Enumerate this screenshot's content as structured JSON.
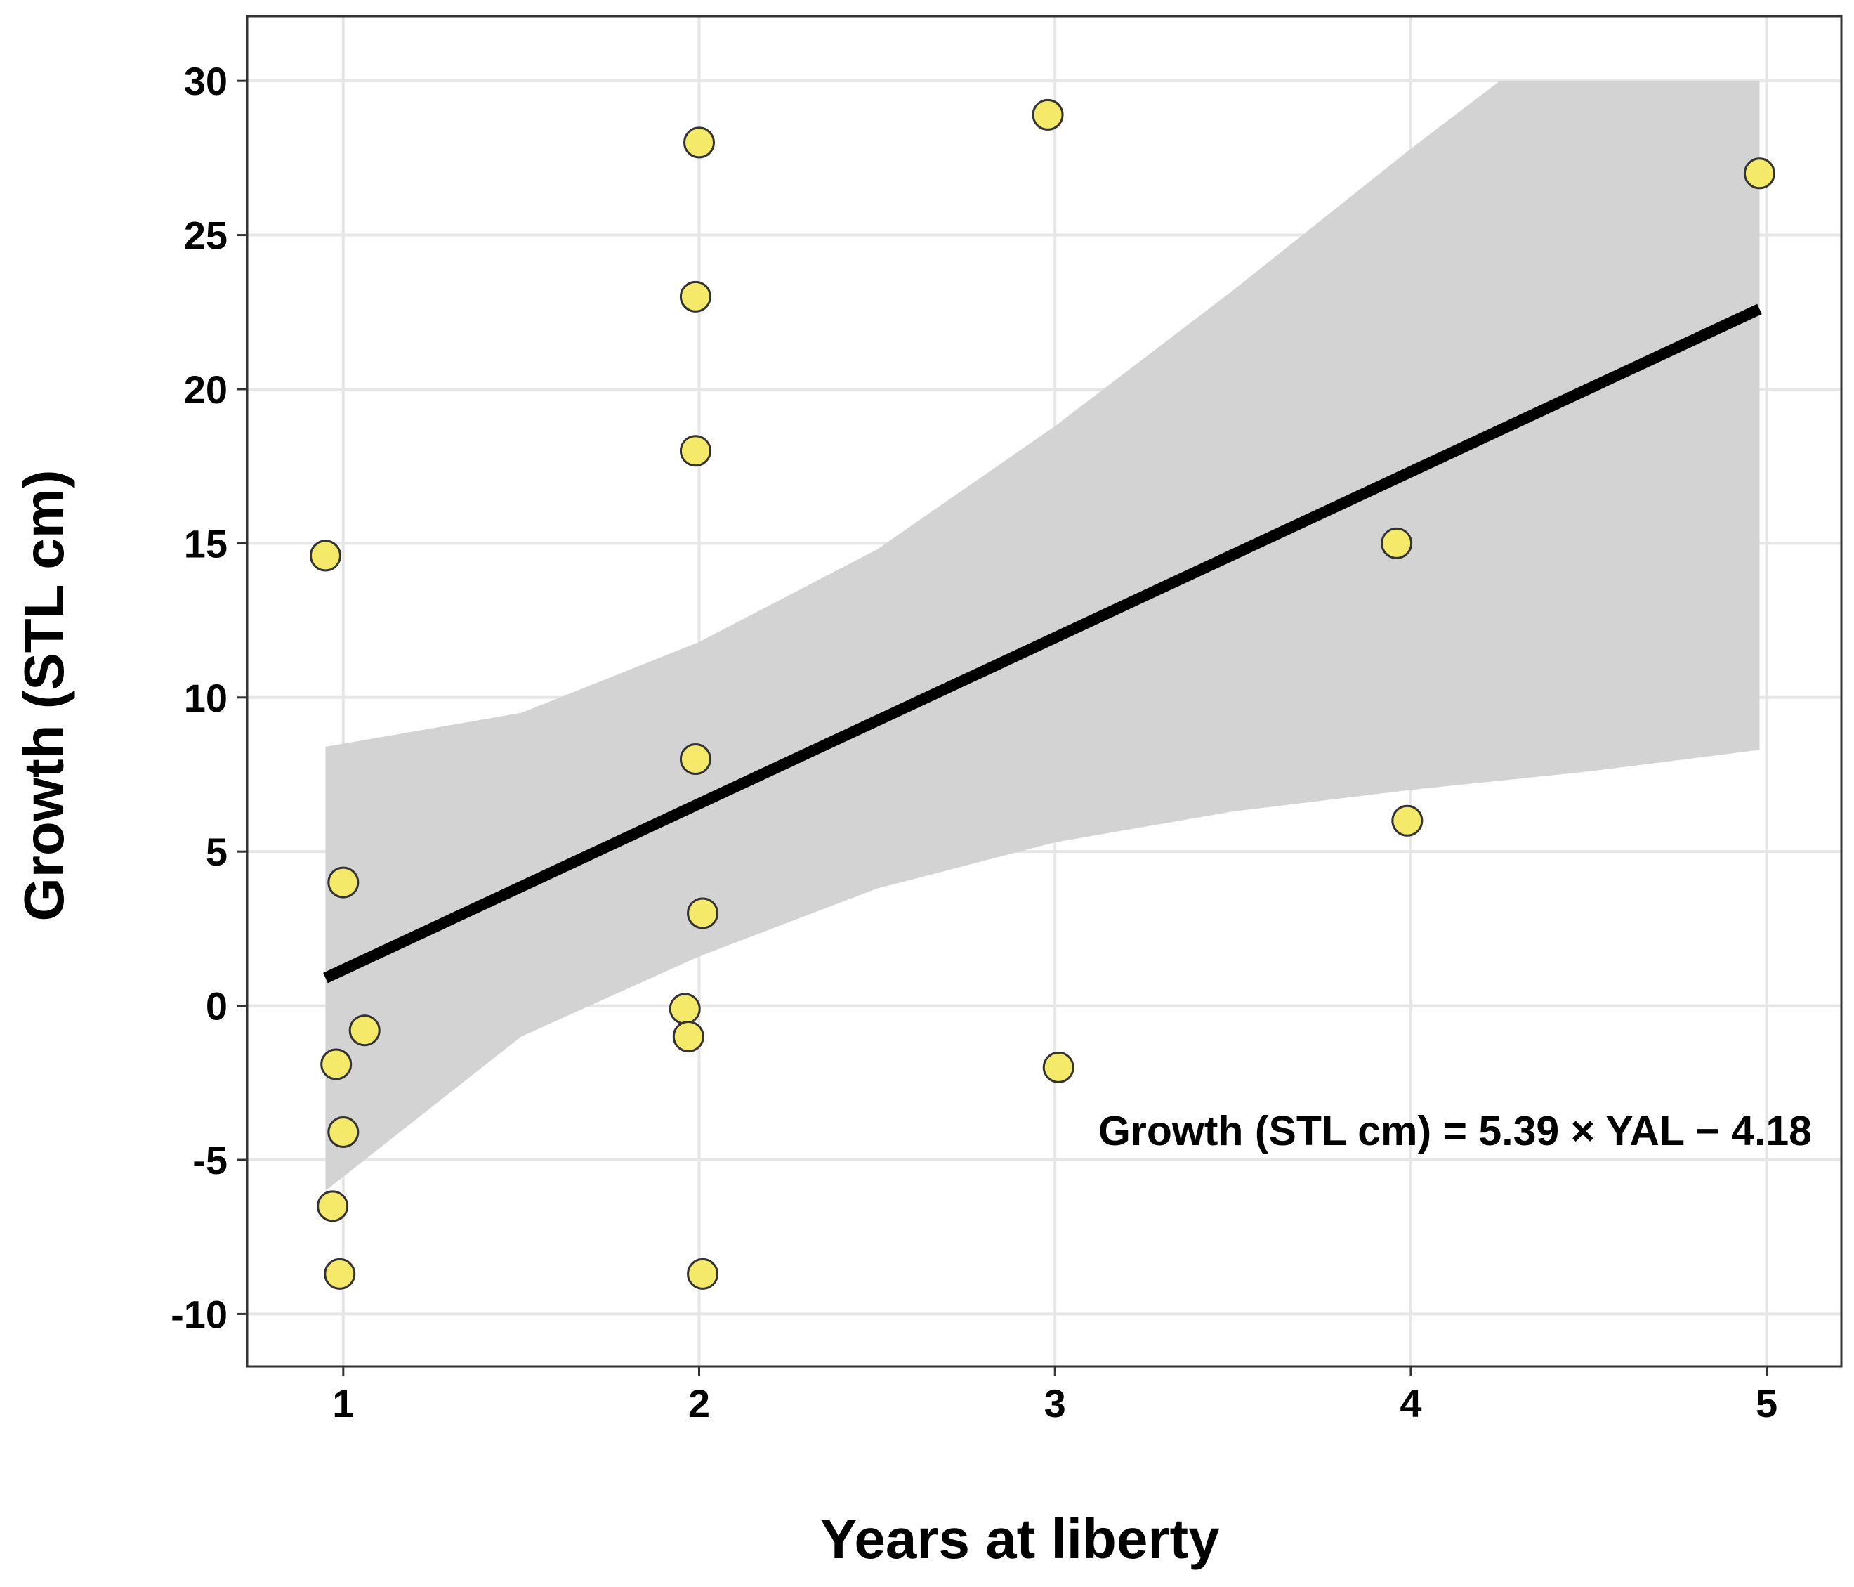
{
  "chart_data": {
    "type": "scatter",
    "xlabel": "Years at liberty",
    "ylabel": "Growth (STL cm)",
    "xlim": [
      0.73,
      5.21
    ],
    "ylim": [
      -11.7,
      32.1
    ],
    "x_ticks": [
      1,
      2,
      3,
      4,
      5
    ],
    "y_ticks": [
      -10,
      -5,
      0,
      5,
      10,
      15,
      20,
      25,
      30
    ],
    "grid": true,
    "annotation": "Growth (STL cm) = 5.39 × YAL − 4.18",
    "points": [
      {
        "x": 0.95,
        "y": 14.6
      },
      {
        "x": 1.0,
        "y": 4.0
      },
      {
        "x": 1.06,
        "y": -0.8
      },
      {
        "x": 0.98,
        "y": -1.9
      },
      {
        "x": 1.0,
        "y": -4.1
      },
      {
        "x": 0.97,
        "y": -6.5
      },
      {
        "x": 0.99,
        "y": -8.7
      },
      {
        "x": 2.0,
        "y": 28.0
      },
      {
        "x": 1.99,
        "y": 23.0
      },
      {
        "x": 1.99,
        "y": 18.0
      },
      {
        "x": 1.99,
        "y": 8.0
      },
      {
        "x": 2.01,
        "y": 3.0
      },
      {
        "x": 1.96,
        "y": -0.1
      },
      {
        "x": 1.97,
        "y": -1.0
      },
      {
        "x": 2.01,
        "y": -8.7
      },
      {
        "x": 2.98,
        "y": 28.9
      },
      {
        "x": 3.01,
        "y": -2.0
      },
      {
        "x": 3.96,
        "y": 15.0
      },
      {
        "x": 3.99,
        "y": 6.0
      },
      {
        "x": 4.98,
        "y": 27.0
      }
    ],
    "fit_line": {
      "x": [
        0.95,
        4.98
      ],
      "y": [
        0.9,
        22.6
      ]
    },
    "confidence_band": {
      "x": [
        0.95,
        1.5,
        2.0,
        2.5,
        3.0,
        3.5,
        4.0,
        4.25,
        4.5,
        4.98
      ],
      "upper": [
        8.4,
        9.5,
        11.8,
        14.8,
        18.8,
        23.2,
        27.8,
        30.0,
        30.0,
        30.0
      ],
      "lower": [
        -6.0,
        -1.0,
        1.6,
        3.8,
        5.3,
        6.3,
        7.0,
        7.3,
        7.6,
        8.3
      ]
    },
    "colors": {
      "point_fill": "#f5e96a",
      "point_stroke": "#333333",
      "fit_line": "#000000",
      "band": "#d3d3d3",
      "grid": "#e6e6e6",
      "panel_border": "#333333"
    }
  }
}
